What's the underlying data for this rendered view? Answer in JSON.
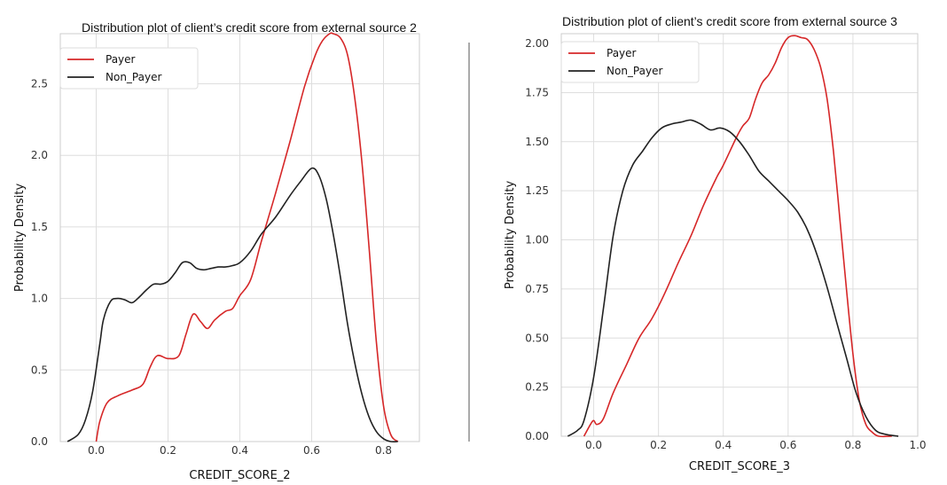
{
  "chart_data": [
    {
      "type": "line",
      "title": "Distribution plot of client’s credit score from external source 2",
      "xlabel": "CREDIT_SCORE_2",
      "ylabel": "Probability Density",
      "xlim": [
        -0.1,
        0.9
      ],
      "ylim": [
        0,
        2.85
      ],
      "xticks": [
        "0.0",
        "0.2",
        "0.4",
        "0.6",
        "0.8"
      ],
      "yticks": [
        "0.0",
        "0.5",
        "1.0",
        "1.5",
        "2.0",
        "2.5"
      ],
      "grid": true,
      "legend_position": "top-left",
      "series": [
        {
          "name": "Payer",
          "color": "#d62728",
          "x": [
            0.0,
            0.01,
            0.03,
            0.06,
            0.1,
            0.13,
            0.15,
            0.17,
            0.2,
            0.23,
            0.25,
            0.27,
            0.29,
            0.31,
            0.33,
            0.36,
            0.38,
            0.4,
            0.43,
            0.46,
            0.5,
            0.54,
            0.58,
            0.61,
            0.63,
            0.65,
            0.66,
            0.68,
            0.7,
            0.72,
            0.74,
            0.76,
            0.78,
            0.8,
            0.82,
            0.84
          ],
          "y": [
            0.0,
            0.14,
            0.27,
            0.32,
            0.36,
            0.4,
            0.52,
            0.6,
            0.58,
            0.6,
            0.75,
            0.89,
            0.84,
            0.79,
            0.85,
            0.91,
            0.93,
            1.02,
            1.13,
            1.4,
            1.74,
            2.1,
            2.48,
            2.7,
            2.8,
            2.85,
            2.85,
            2.82,
            2.7,
            2.4,
            1.95,
            1.35,
            0.7,
            0.25,
            0.05,
            0.0
          ]
        },
        {
          "name": "Non_Payer",
          "color": "#222222",
          "x": [
            -0.08,
            -0.05,
            -0.03,
            -0.01,
            0.01,
            0.02,
            0.04,
            0.06,
            0.08,
            0.1,
            0.12,
            0.14,
            0.16,
            0.18,
            0.2,
            0.22,
            0.24,
            0.26,
            0.28,
            0.3,
            0.32,
            0.34,
            0.36,
            0.38,
            0.4,
            0.43,
            0.46,
            0.5,
            0.54,
            0.57,
            0.6,
            0.62,
            0.64,
            0.66,
            0.68,
            0.7,
            0.72,
            0.74,
            0.76,
            0.78,
            0.8,
            0.82,
            0.84
          ],
          "y": [
            0.0,
            0.05,
            0.15,
            0.35,
            0.68,
            0.85,
            0.98,
            1.0,
            0.99,
            0.97,
            1.01,
            1.06,
            1.1,
            1.1,
            1.12,
            1.18,
            1.25,
            1.25,
            1.21,
            1.2,
            1.21,
            1.22,
            1.22,
            1.23,
            1.25,
            1.33,
            1.45,
            1.57,
            1.72,
            1.82,
            1.91,
            1.86,
            1.7,
            1.45,
            1.15,
            0.82,
            0.55,
            0.33,
            0.17,
            0.07,
            0.02,
            0.0,
            0.0
          ]
        }
      ]
    },
    {
      "type": "line",
      "title": "Distribution plot of client’s credit score from external source 3",
      "xlabel": "CREDIT_SCORE_3",
      "ylabel": "Probability Density",
      "xlim": [
        -0.1,
        1.0
      ],
      "ylim": [
        0,
        2.05
      ],
      "xticks": [
        "0.0",
        "0.2",
        "0.4",
        "0.6",
        "0.8",
        "1.0"
      ],
      "yticks": [
        "0.00",
        "0.25",
        "0.50",
        "0.75",
        "1.00",
        "1.25",
        "1.50",
        "1.75",
        "2.00"
      ],
      "grid": true,
      "legend_position": "top-left",
      "series": [
        {
          "name": "Payer",
          "color": "#d62728",
          "x": [
            -0.03,
            -0.01,
            0.0,
            0.01,
            0.03,
            0.06,
            0.1,
            0.14,
            0.18,
            0.22,
            0.26,
            0.3,
            0.34,
            0.38,
            0.4,
            0.44,
            0.46,
            0.48,
            0.5,
            0.52,
            0.54,
            0.56,
            0.58,
            0.6,
            0.62,
            0.64,
            0.66,
            0.68,
            0.7,
            0.72,
            0.74,
            0.76,
            0.78,
            0.8,
            0.82,
            0.84,
            0.86,
            0.88,
            0.92
          ],
          "y": [
            0.0,
            0.06,
            0.08,
            0.06,
            0.09,
            0.22,
            0.36,
            0.5,
            0.6,
            0.73,
            0.88,
            1.02,
            1.18,
            1.32,
            1.38,
            1.52,
            1.58,
            1.62,
            1.72,
            1.8,
            1.84,
            1.9,
            1.98,
            2.03,
            2.04,
            2.03,
            2.02,
            1.97,
            1.88,
            1.72,
            1.45,
            1.1,
            0.75,
            0.42,
            0.18,
            0.06,
            0.02,
            0.0,
            0.0
          ]
        },
        {
          "name": "Non_Payer",
          "color": "#222222",
          "x": [
            -0.08,
            -0.05,
            -0.03,
            0.0,
            0.03,
            0.06,
            0.09,
            0.12,
            0.15,
            0.18,
            0.21,
            0.24,
            0.27,
            0.3,
            0.33,
            0.36,
            0.39,
            0.42,
            0.45,
            0.48,
            0.51,
            0.54,
            0.57,
            0.6,
            0.63,
            0.66,
            0.69,
            0.72,
            0.75,
            0.78,
            0.81,
            0.84,
            0.87,
            0.9,
            0.94
          ],
          "y": [
            0.0,
            0.03,
            0.08,
            0.3,
            0.65,
            1.02,
            1.25,
            1.38,
            1.45,
            1.52,
            1.57,
            1.59,
            1.6,
            1.61,
            1.59,
            1.56,
            1.57,
            1.55,
            1.5,
            1.43,
            1.35,
            1.3,
            1.25,
            1.2,
            1.14,
            1.05,
            0.92,
            0.76,
            0.58,
            0.4,
            0.22,
            0.1,
            0.03,
            0.01,
            0.0
          ]
        }
      ]
    }
  ]
}
